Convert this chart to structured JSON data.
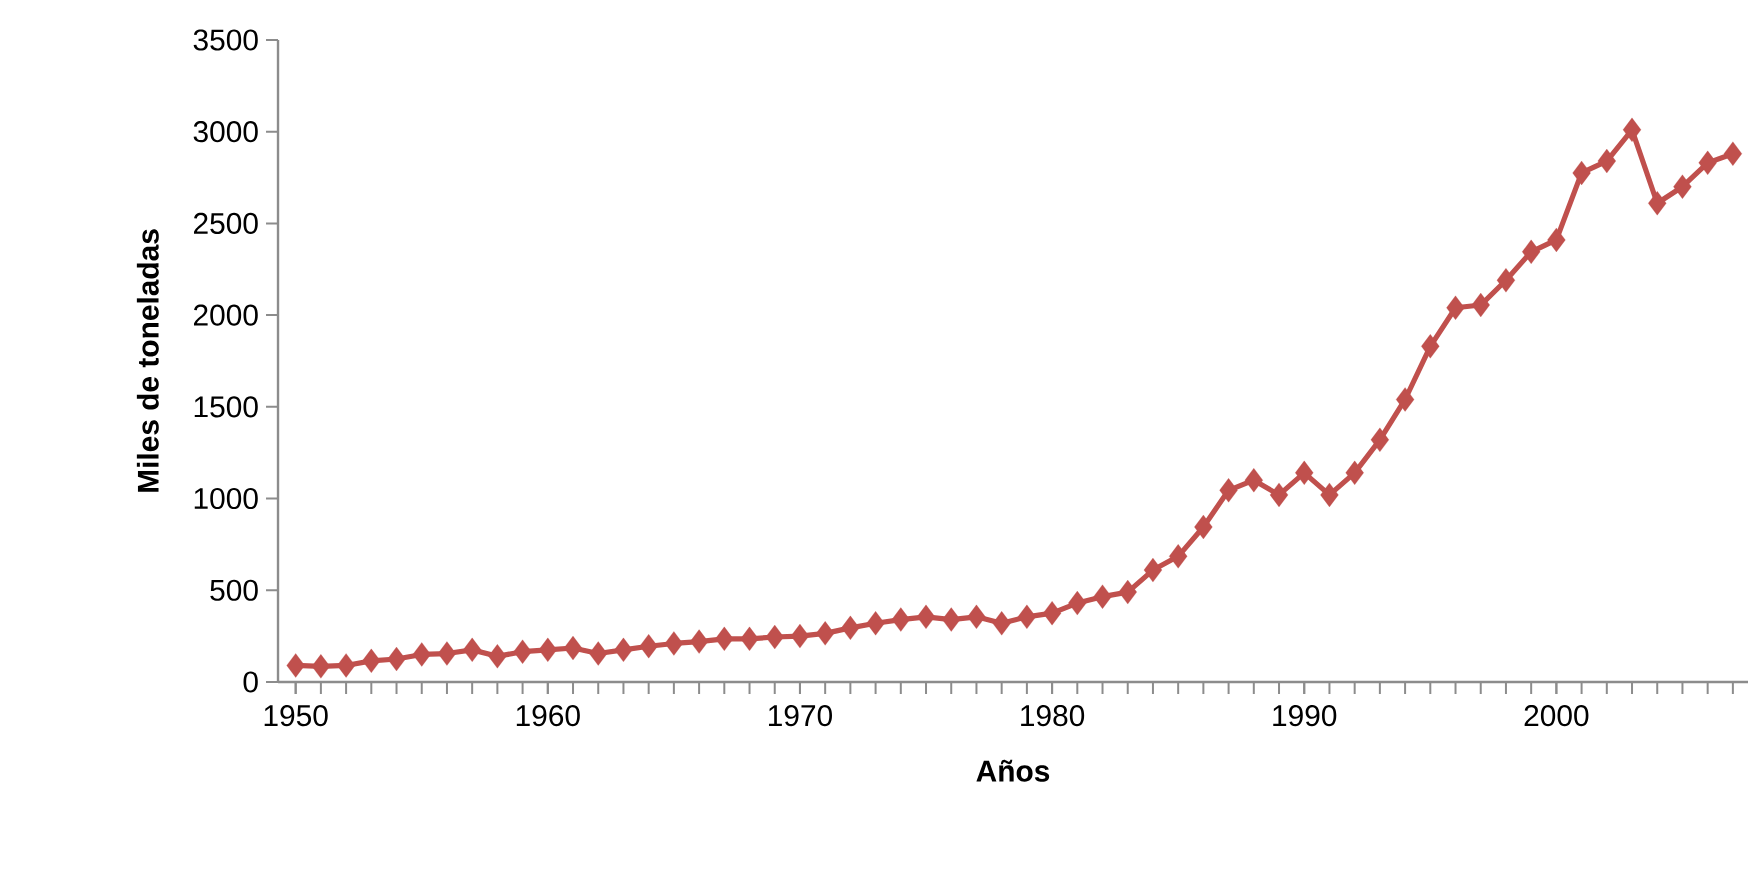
{
  "chart_data": {
    "type": "line",
    "xlabel": "Años",
    "ylabel": "Miles de toneladas",
    "x": [
      1950,
      1951,
      1952,
      1953,
      1954,
      1955,
      1956,
      1957,
      1958,
      1959,
      1960,
      1961,
      1962,
      1963,
      1964,
      1965,
      1966,
      1967,
      1968,
      1969,
      1970,
      1971,
      1972,
      1973,
      1974,
      1975,
      1976,
      1977,
      1978,
      1979,
      1980,
      1981,
      1982,
      1983,
      1984,
      1985,
      1986,
      1987,
      1988,
      1989,
      1990,
      1991,
      1992,
      1993,
      1994,
      1995,
      1996,
      1997,
      1998,
      1999,
      2000,
      2001,
      2002,
      2003,
      2004,
      2005,
      2006,
      2007
    ],
    "series": [
      {
        "color": "#c0504d",
        "values": [
          90,
          85,
          90,
          115,
          125,
          150,
          155,
          175,
          140,
          165,
          175,
          185,
          155,
          175,
          195,
          210,
          220,
          235,
          235,
          245,
          250,
          265,
          295,
          320,
          340,
          355,
          340,
          355,
          320,
          355,
          375,
          430,
          465,
          490,
          610,
          685,
          845,
          1045,
          1100,
          1020,
          1140,
          1020,
          1140,
          1320,
          1540,
          1830,
          2040,
          2055,
          2190,
          2345,
          2410,
          2775,
          2840,
          3010,
          2610,
          2700,
          2830,
          2880
        ]
      }
    ],
    "xlim": [
      1949.3,
      2007.6
    ],
    "ylim": [
      0,
      3500
    ],
    "xticks": [
      1950,
      1960,
      1970,
      1980,
      1990,
      2000
    ],
    "yticks": [
      0,
      500,
      1000,
      1500,
      2000,
      2500,
      3000,
      3500
    ],
    "marker": "diamond",
    "line_style": "solid",
    "grid": false
  }
}
